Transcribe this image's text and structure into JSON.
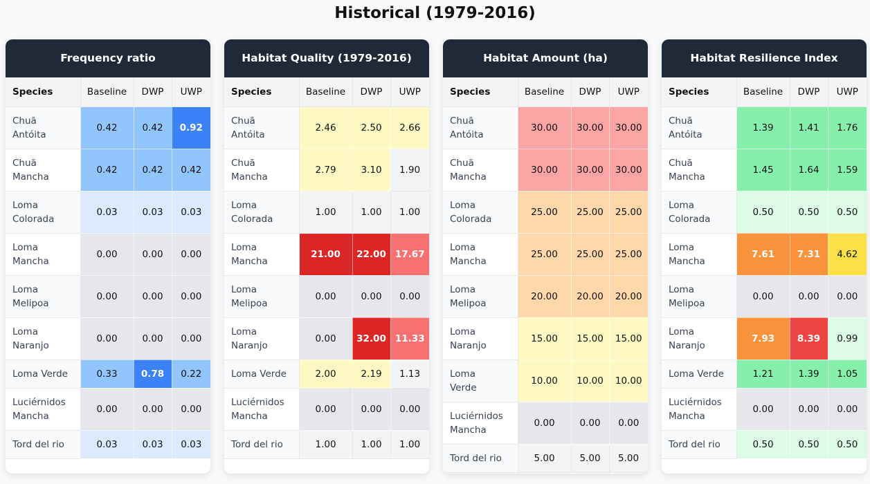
{
  "page": {
    "title": "Historical (1979-2016)"
  },
  "columns": {
    "species": "Species",
    "baseline": "Baseline",
    "dwp": "DWP",
    "uwp": "UWP"
  },
  "colors": {
    "header_bg": "#1f2937",
    "blue_dark": "#3b82f6",
    "blue_mid": "#93c5fd",
    "blue_light": "#dbeafe",
    "gray_zero": "#e5e7eb",
    "gray_light": "#f3f4f6",
    "yellow_light": "#fef9c3",
    "red_dark": "#dc2626",
    "red_mid": "#f87171",
    "red_light": "#fca5a5",
    "orange_light": "#fed7aa",
    "green_mid": "#86efac",
    "green_light": "#dcfce7",
    "orange": "#fb923c",
    "red": "#ef4444",
    "yellow": "#fde047"
  },
  "tables": [
    {
      "title": "Frequency ratio",
      "rows": [
        {
          "species": "Chuã Antóita",
          "lines": 2,
          "values": [
            "0.42",
            "0.42",
            "0.92"
          ],
          "tones": [
            "blue_mid",
            "blue_mid",
            "blue_dark"
          ]
        },
        {
          "species": "Chuã Mancha",
          "lines": 2,
          "values": [
            "0.42",
            "0.42",
            "0.42"
          ],
          "tones": [
            "blue_mid",
            "blue_mid",
            "blue_mid"
          ]
        },
        {
          "species": "Loma Colorada",
          "lines": 2,
          "values": [
            "0.03",
            "0.03",
            "0.03"
          ],
          "tones": [
            "blue_light",
            "blue_light",
            "blue_light"
          ]
        },
        {
          "species": "Loma Mancha",
          "lines": 2,
          "values": [
            "0.00",
            "0.00",
            "0.00"
          ],
          "tones": [
            "gray_zero",
            "gray_zero",
            "gray_zero"
          ]
        },
        {
          "species": "Loma Melipoa",
          "lines": 2,
          "values": [
            "0.00",
            "0.00",
            "0.00"
          ],
          "tones": [
            "gray_zero",
            "gray_zero",
            "gray_zero"
          ]
        },
        {
          "species": "Loma Naranjo",
          "lines": 2,
          "values": [
            "0.00",
            "0.00",
            "0.00"
          ],
          "tones": [
            "gray_zero",
            "gray_zero",
            "gray_zero"
          ]
        },
        {
          "species": "Loma Verde",
          "lines": 1,
          "values": [
            "0.33",
            "0.78",
            "0.22"
          ],
          "tones": [
            "blue_mid",
            "blue_dark",
            "blue_mid"
          ]
        },
        {
          "species": "Luciérnidos Mancha",
          "lines": 2,
          "values": [
            "0.00",
            "0.00",
            "0.00"
          ],
          "tones": [
            "gray_zero",
            "gray_zero",
            "gray_zero"
          ]
        },
        {
          "species": "Tord del rio",
          "lines": 1,
          "values": [
            "0.03",
            "0.03",
            "0.03"
          ],
          "tones": [
            "blue_light",
            "blue_light",
            "blue_light"
          ]
        }
      ]
    },
    {
      "title": "Habitat Quality (1979-2016)",
      "rows": [
        {
          "species": "Chuã Antóita",
          "lines": 2,
          "values": [
            "2.46",
            "2.50",
            "2.66"
          ],
          "tones": [
            "yellow_light",
            "yellow_light",
            "yellow_light"
          ]
        },
        {
          "species": "Chuã Mancha",
          "lines": 2,
          "values": [
            "2.79",
            "3.10",
            "1.90"
          ],
          "tones": [
            "yellow_light",
            "yellow_light",
            "gray_light"
          ]
        },
        {
          "species": "Loma Colorada",
          "lines": 2,
          "values": [
            "1.00",
            "1.00",
            "1.00"
          ],
          "tones": [
            "gray_light",
            "gray_light",
            "gray_light"
          ]
        },
        {
          "species": "Loma Mancha",
          "lines": 2,
          "values": [
            "21.00",
            "22.00",
            "17.67"
          ],
          "tones": [
            "red_dark",
            "red_dark",
            "red_mid"
          ]
        },
        {
          "species": "Loma Melipoa",
          "lines": 2,
          "values": [
            "0.00",
            "0.00",
            "0.00"
          ],
          "tones": [
            "gray_zero",
            "gray_zero",
            "gray_zero"
          ]
        },
        {
          "species": "Loma Naranjo",
          "lines": 2,
          "values": [
            "0.00",
            "32.00",
            "11.33"
          ],
          "tones": [
            "gray_zero",
            "red_dark",
            "red_mid"
          ]
        },
        {
          "species": "Loma Verde",
          "lines": 1,
          "values": [
            "2.00",
            "2.19",
            "1.13"
          ],
          "tones": [
            "yellow_light",
            "yellow_light",
            "gray_light"
          ]
        },
        {
          "species": "Luciérnidos Mancha",
          "lines": 2,
          "values": [
            "0.00",
            "0.00",
            "0.00"
          ],
          "tones": [
            "gray_zero",
            "gray_zero",
            "gray_zero"
          ]
        },
        {
          "species": "Tord del rio",
          "lines": 1,
          "values": [
            "1.00",
            "1.00",
            "1.00"
          ],
          "tones": [
            "gray_light",
            "gray_light",
            "gray_light"
          ]
        }
      ]
    },
    {
      "title": "Habitat Amount (ha)",
      "rows": [
        {
          "species": "Chuã Antóita",
          "lines": 2,
          "values": [
            "30.00",
            "30.00",
            "30.00"
          ],
          "tones": [
            "red_light",
            "red_light",
            "red_light"
          ]
        },
        {
          "species": "Chuã Mancha",
          "lines": 2,
          "values": [
            "30.00",
            "30.00",
            "30.00"
          ],
          "tones": [
            "red_light",
            "red_light",
            "red_light"
          ]
        },
        {
          "species": "Loma Colorada",
          "lines": 2,
          "values": [
            "25.00",
            "25.00",
            "25.00"
          ],
          "tones": [
            "orange_light",
            "orange_light",
            "orange_light"
          ]
        },
        {
          "species": "Loma Mancha",
          "lines": 2,
          "values": [
            "25.00",
            "25.00",
            "25.00"
          ],
          "tones": [
            "orange_light",
            "orange_light",
            "orange_light"
          ]
        },
        {
          "species": "Loma Melipoa",
          "lines": 2,
          "values": [
            "20.00",
            "20.00",
            "20.00"
          ],
          "tones": [
            "orange_light",
            "orange_light",
            "orange_light"
          ]
        },
        {
          "species": "Loma Naranjo",
          "lines": 2,
          "values": [
            "15.00",
            "15.00",
            "15.00"
          ],
          "tones": [
            "yellow_light",
            "yellow_light",
            "yellow_light"
          ]
        },
        {
          "species": "Loma Verde",
          "lines": 2,
          "values": [
            "10.00",
            "10.00",
            "10.00"
          ],
          "tones": [
            "yellow_light",
            "yellow_light",
            "yellow_light"
          ]
        },
        {
          "species": "Luciérnidos Mancha",
          "lines": 2,
          "values": [
            "0.00",
            "0.00",
            "0.00"
          ],
          "tones": [
            "gray_zero",
            "gray_zero",
            "gray_zero"
          ]
        },
        {
          "species": "Tord del rio",
          "lines": 1,
          "values": [
            "5.00",
            "5.00",
            "5.00"
          ],
          "tones": [
            "gray_light",
            "gray_light",
            "gray_light"
          ]
        }
      ]
    },
    {
      "title": "Habitat Resilience Index",
      "rows": [
        {
          "species": "Chuã Antóita",
          "lines": 2,
          "values": [
            "1.39",
            "1.41",
            "1.76"
          ],
          "tones": [
            "green_mid",
            "green_mid",
            "green_mid"
          ]
        },
        {
          "species": "Chuã Mancha",
          "lines": 2,
          "values": [
            "1.45",
            "1.64",
            "1.59"
          ],
          "tones": [
            "green_mid",
            "green_mid",
            "green_mid"
          ]
        },
        {
          "species": "Loma Colorada",
          "lines": 2,
          "values": [
            "0.50",
            "0.50",
            "0.50"
          ],
          "tones": [
            "green_light",
            "green_light",
            "green_light"
          ]
        },
        {
          "species": "Loma Mancha",
          "lines": 2,
          "values": [
            "7.61",
            "7.31",
            "4.62"
          ],
          "tones": [
            "orange",
            "orange",
            "yellow"
          ]
        },
        {
          "species": "Loma Melipoa",
          "lines": 2,
          "values": [
            "0.00",
            "0.00",
            "0.00"
          ],
          "tones": [
            "gray_zero",
            "gray_zero",
            "gray_zero"
          ]
        },
        {
          "species": "Loma Naranjo",
          "lines": 2,
          "values": [
            "7.93",
            "8.39",
            "0.99"
          ],
          "tones": [
            "orange",
            "red",
            "green_light"
          ]
        },
        {
          "species": "Loma Verde",
          "lines": 1,
          "values": [
            "1.21",
            "1.39",
            "1.05"
          ],
          "tones": [
            "green_mid",
            "green_mid",
            "green_mid"
          ]
        },
        {
          "species": "Luciérnidos Mancha",
          "lines": 2,
          "values": [
            "0.00",
            "0.00",
            "0.00"
          ],
          "tones": [
            "gray_zero",
            "gray_zero",
            "gray_zero"
          ]
        },
        {
          "species": "Tord del rio",
          "lines": 1,
          "values": [
            "0.50",
            "0.50",
            "0.50"
          ],
          "tones": [
            "green_light",
            "green_light",
            "green_light"
          ]
        }
      ]
    }
  ]
}
